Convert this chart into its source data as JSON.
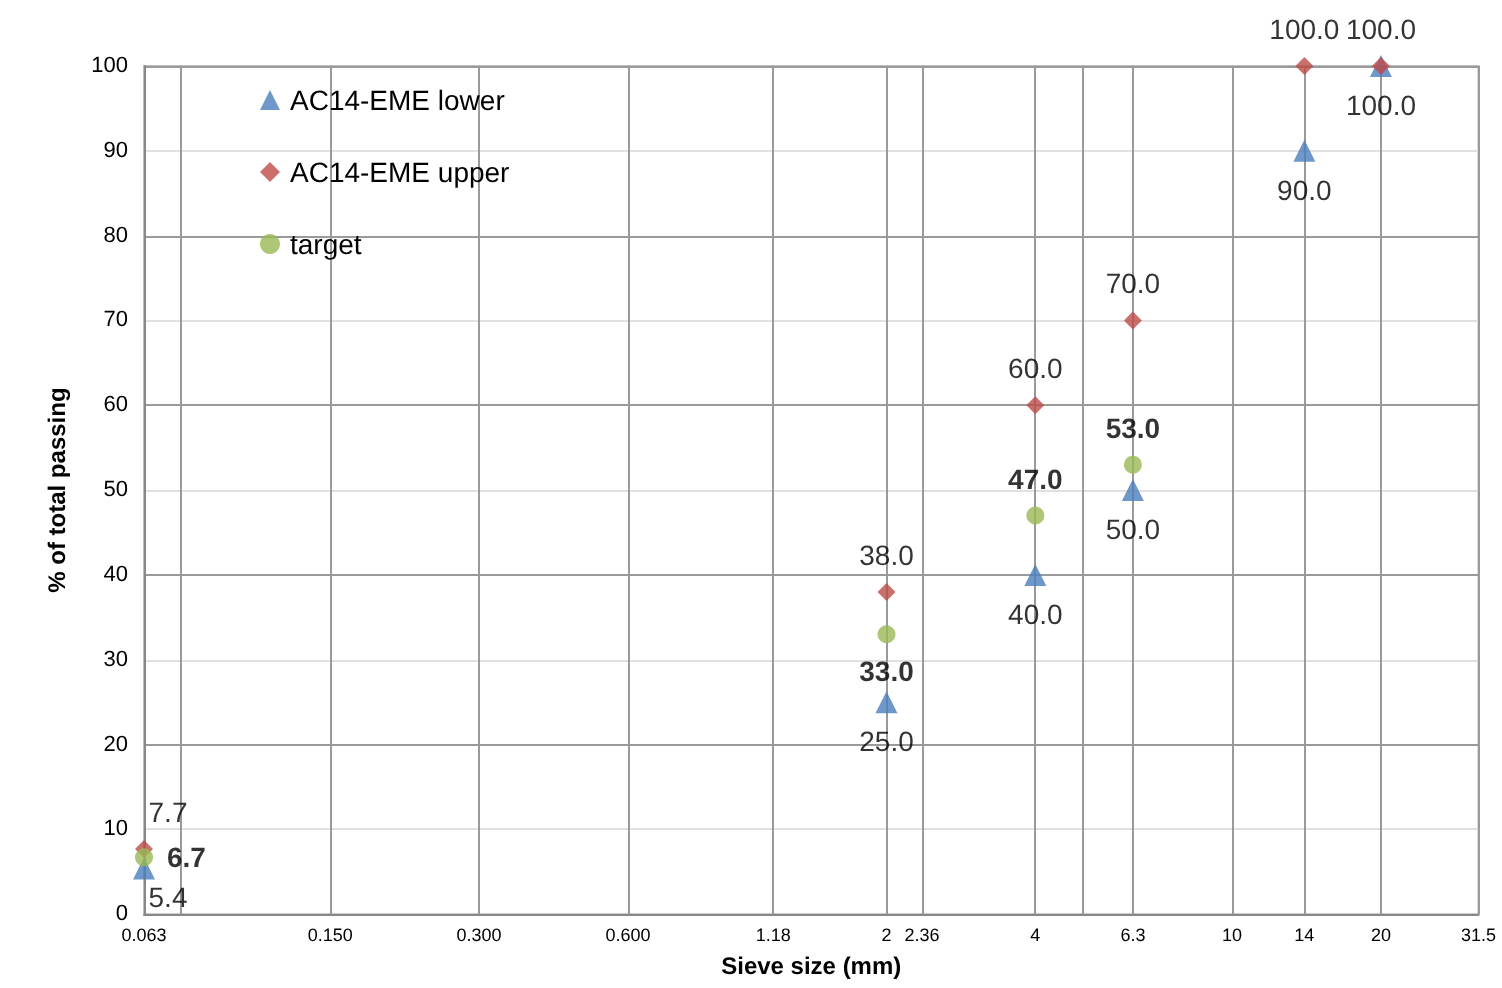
{
  "chart_data": {
    "type": "scatter",
    "xlabel": "Sieve size (mm)",
    "ylabel": "% of total passing",
    "log": "x",
    "xlim": [
      0.063,
      31.5
    ],
    "ylim": [
      0,
      100
    ],
    "xticks": [
      0.063,
      {
        "value": 0.075,
        "label": null
      },
      {
        "value": 0.15,
        "label": "0.150"
      },
      {
        "value": 0.3,
        "label": "0.300"
      },
      {
        "value": 0.6,
        "label": "0.600"
      },
      1.18,
      2,
      2.36,
      4,
      {
        "value": 5,
        "label": null
      },
      6.3,
      10,
      14,
      20,
      31.5
    ],
    "yticks": [
      0,
      10,
      20,
      30,
      40,
      50,
      60,
      70,
      80,
      90,
      100
    ],
    "grid": true,
    "legend": "top left",
    "series": [
      {
        "name": "AC14-EME lower",
        "color": "#4a7ebb",
        "marker": "triangle",
        "x": [
          0.063,
          2,
          4,
          6.3,
          14,
          20
        ],
        "values": [
          5.4,
          25,
          40,
          50,
          90,
          100
        ],
        "value_labels": [
          "5.4",
          "25.0",
          "40.0",
          "50.0",
          "90.0",
          "100.0"
        ]
      },
      {
        "name": "AC14-EME upper",
        "color": "#be4b48",
        "marker": "diamond",
        "x": [
          0.063,
          2,
          4,
          6.3,
          14,
          20
        ],
        "values": [
          7.7,
          38,
          60,
          70,
          100,
          100
        ],
        "value_labels": [
          "7.7",
          "38.0",
          "60.0",
          "70.0",
          "100.0",
          "100.0"
        ]
      },
      {
        "name": "target",
        "color": "#98b954",
        "marker": "circle",
        "x": [
          0.063,
          2,
          4,
          6.3
        ],
        "values": [
          6.7,
          33,
          47,
          53
        ],
        "value_labels": [
          "6.7",
          "33.0",
          "47.0",
          "53.0"
        ]
      }
    ]
  }
}
